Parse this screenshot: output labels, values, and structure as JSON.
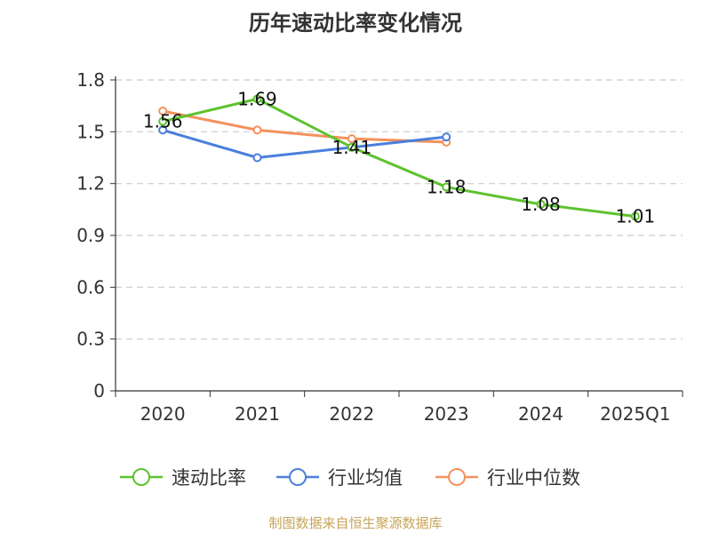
{
  "chart_data": {
    "type": "line",
    "title": "历年速动比率变化情况",
    "categories": [
      "2020",
      "2021",
      "2022",
      "2023",
      "2024",
      "2025Q1"
    ],
    "ylim": [
      0,
      1.8
    ],
    "yticks": [
      "0",
      "0.3",
      "0.6",
      "0.9",
      "1.2",
      "1.5",
      "1.8"
    ],
    "grid": true,
    "legend_position": "bottom",
    "series": [
      {
        "name": "速动比率",
        "color": "#5ec22e",
        "values": [
          1.56,
          1.69,
          1.41,
          1.18,
          1.08,
          1.01
        ],
        "labels": [
          "1.56",
          "1.69",
          "1.41",
          "1.18",
          "1.08",
          "1.01"
        ]
      },
      {
        "name": "行业均值",
        "color": "#4a7fdc",
        "values": [
          1.51,
          1.35,
          1.41,
          1.47,
          null,
          null
        ]
      },
      {
        "name": "行业中位数",
        "color": "#f4915c",
        "values": [
          1.62,
          1.51,
          1.46,
          1.44,
          null,
          null
        ]
      }
    ]
  },
  "footer": {
    "source": "制图数据来自恒生聚源数据库"
  }
}
